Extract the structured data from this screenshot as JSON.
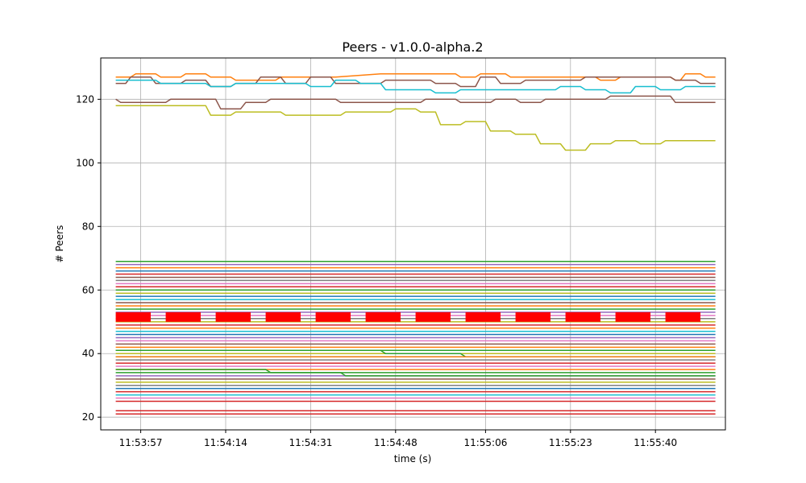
{
  "chart_data": {
    "type": "line",
    "title": "Peers  -  v1.0.0-alpha.2",
    "xlabel": "time (s)",
    "ylabel": "# Peers",
    "xlim": [
      "11:53:49",
      "11:55:54"
    ],
    "ylim": [
      16,
      133
    ],
    "grid": true,
    "legend": "none",
    "x_ticks": [
      "11:53:57",
      "11:54:14",
      "11:54:31",
      "11:54:48",
      "11:55:06",
      "11:55:23",
      "11:55:40"
    ],
    "y_ticks": [
      20,
      40,
      60,
      80,
      100,
      120
    ],
    "time_range": [
      "11:53:52",
      "11:55:52"
    ],
    "colors": [
      "#1f77b4",
      "#ff7f0e",
      "#2ca02c",
      "#d62728",
      "#9467bd",
      "#8c564b",
      "#e377c2",
      "#7f7f7f",
      "#bcbd22",
      "#17becf"
    ],
    "series": [
      {
        "color": "#ff7f0e",
        "points": [
          [
            "11:53:52",
            127
          ],
          [
            "11:53:55",
            127
          ],
          [
            "11:53:56",
            128
          ],
          [
            "11:54:00",
            128
          ],
          [
            "11:54:01",
            127
          ],
          [
            "11:54:05",
            127
          ],
          [
            "11:54:06",
            128
          ],
          [
            "11:54:10",
            128
          ],
          [
            "11:54:11",
            127
          ],
          [
            "11:54:15",
            127
          ],
          [
            "11:54:16",
            126
          ],
          [
            "11:54:24",
            126
          ],
          [
            "11:54:25",
            127
          ],
          [
            "11:54:35",
            127
          ],
          [
            "11:54:36",
            127
          ],
          [
            "11:54:45",
            128
          ],
          [
            "11:55:00",
            128
          ],
          [
            "11:55:01",
            127
          ],
          [
            "11:55:04",
            127
          ],
          [
            "11:55:05",
            128
          ],
          [
            "11:55:10",
            128
          ],
          [
            "11:55:11",
            127
          ],
          [
            "11:55:28",
            127
          ],
          [
            "11:55:29",
            126
          ],
          [
            "11:55:32",
            126
          ],
          [
            "11:55:33",
            127
          ],
          [
            "11:55:43",
            127
          ],
          [
            "11:55:44",
            126
          ],
          [
            "11:55:45",
            126
          ],
          [
            "11:55:46",
            128
          ],
          [
            "11:55:49",
            128
          ],
          [
            "11:55:50",
            127
          ],
          [
            "11:55:52",
            127
          ]
        ]
      },
      {
        "color": "#8c564b",
        "points": [
          [
            "11:53:52",
            125
          ],
          [
            "11:53:54",
            125
          ],
          [
            "11:53:55",
            127
          ],
          [
            "11:53:59",
            127
          ],
          [
            "11:54:00",
            125
          ],
          [
            "11:54:05",
            125
          ],
          [
            "11:54:06",
            126
          ],
          [
            "11:54:10",
            126
          ],
          [
            "11:54:11",
            124
          ],
          [
            "11:54:15",
            124
          ],
          [
            "11:54:16",
            125
          ],
          [
            "11:54:20",
            125
          ],
          [
            "11:54:21",
            127
          ],
          [
            "11:54:25",
            127
          ],
          [
            "11:54:26",
            125
          ],
          [
            "11:54:30",
            125
          ],
          [
            "11:54:31",
            127
          ],
          [
            "11:54:35",
            127
          ],
          [
            "11:54:36",
            125
          ],
          [
            "11:54:45",
            125
          ],
          [
            "11:54:46",
            126
          ],
          [
            "11:54:55",
            126
          ],
          [
            "11:54:56",
            125
          ],
          [
            "11:55:00",
            125
          ],
          [
            "11:55:01",
            124
          ],
          [
            "11:55:04",
            124
          ],
          [
            "11:55:05",
            127
          ],
          [
            "11:55:08",
            127
          ],
          [
            "11:55:09",
            125
          ],
          [
            "11:55:13",
            125
          ],
          [
            "11:55:14",
            126
          ],
          [
            "11:55:25",
            126
          ],
          [
            "11:55:26",
            127
          ],
          [
            "11:55:43",
            127
          ],
          [
            "11:55:44",
            126
          ],
          [
            "11:55:48",
            126
          ],
          [
            "11:55:49",
            125
          ],
          [
            "11:55:52",
            125
          ]
        ]
      },
      {
        "color": "#17becf",
        "points": [
          [
            "11:53:52",
            126
          ],
          [
            "11:54:00",
            126
          ],
          [
            "11:54:01",
            125
          ],
          [
            "11:54:05",
            125
          ],
          [
            "11:54:06",
            125
          ],
          [
            "11:54:10",
            125
          ],
          [
            "11:54:11",
            124
          ],
          [
            "11:54:15",
            124
          ],
          [
            "11:54:16",
            125
          ],
          [
            "11:54:30",
            125
          ],
          [
            "11:54:31",
            124
          ],
          [
            "11:54:35",
            124
          ],
          [
            "11:54:36",
            126
          ],
          [
            "11:54:40",
            126
          ],
          [
            "11:54:41",
            125
          ],
          [
            "11:54:45",
            125
          ],
          [
            "11:54:46",
            123
          ],
          [
            "11:54:55",
            123
          ],
          [
            "11:54:56",
            122
          ],
          [
            "11:55:00",
            122
          ],
          [
            "11:55:01",
            123
          ],
          [
            "11:55:20",
            123
          ],
          [
            "11:55:21",
            124
          ],
          [
            "11:55:25",
            124
          ],
          [
            "11:55:26",
            123
          ],
          [
            "11:55:30",
            123
          ],
          [
            "11:55:31",
            122
          ],
          [
            "11:55:35",
            122
          ],
          [
            "11:55:36",
            124
          ],
          [
            "11:55:40",
            124
          ],
          [
            "11:55:41",
            123
          ],
          [
            "11:55:45",
            123
          ],
          [
            "11:55:46",
            124
          ],
          [
            "11:55:52",
            124
          ]
        ]
      },
      {
        "color": "#8c564b",
        "points": [
          [
            "11:53:52",
            120
          ],
          [
            "11:53:53",
            119
          ],
          [
            "11:54:02",
            119
          ],
          [
            "11:54:03",
            120
          ],
          [
            "11:54:12",
            120
          ],
          [
            "11:54:13",
            117
          ],
          [
            "11:54:17",
            117
          ],
          [
            "11:54:18",
            119
          ],
          [
            "11:54:22",
            119
          ],
          [
            "11:54:23",
            120
          ],
          [
            "11:54:36",
            120
          ],
          [
            "11:54:37",
            119
          ],
          [
            "11:54:53",
            119
          ],
          [
            "11:54:54",
            120
          ],
          [
            "11:55:00",
            120
          ],
          [
            "11:55:01",
            119
          ],
          [
            "11:55:07",
            119
          ],
          [
            "11:55:08",
            120
          ],
          [
            "11:55:12",
            120
          ],
          [
            "11:55:13",
            119
          ],
          [
            "11:55:17",
            119
          ],
          [
            "11:55:18",
            120
          ],
          [
            "11:55:30",
            120
          ],
          [
            "11:55:31",
            121
          ],
          [
            "11:55:43",
            121
          ],
          [
            "11:55:44",
            119
          ],
          [
            "11:55:52",
            119
          ]
        ]
      },
      {
        "color": "#bcbd22",
        "points": [
          [
            "11:53:52",
            118
          ],
          [
            "11:54:10",
            118
          ],
          [
            "11:54:11",
            115
          ],
          [
            "11:54:15",
            115
          ],
          [
            "11:54:16",
            116
          ],
          [
            "11:54:25",
            116
          ],
          [
            "11:54:26",
            115
          ],
          [
            "11:54:37",
            115
          ],
          [
            "11:54:38",
            116
          ],
          [
            "11:54:47",
            116
          ],
          [
            "11:54:48",
            117
          ],
          [
            "11:54:52",
            117
          ],
          [
            "11:54:53",
            116
          ],
          [
            "11:54:56",
            116
          ],
          [
            "11:54:57",
            112
          ],
          [
            "11:55:01",
            112
          ],
          [
            "11:55:02",
            113
          ],
          [
            "11:55:06",
            113
          ],
          [
            "11:55:07",
            110
          ],
          [
            "11:55:11",
            110
          ],
          [
            "11:55:12",
            109
          ],
          [
            "11:55:16",
            109
          ],
          [
            "11:55:17",
            106
          ],
          [
            "11:55:21",
            106
          ],
          [
            "11:55:22",
            104
          ],
          [
            "11:55:26",
            104
          ],
          [
            "11:55:27",
            106
          ],
          [
            "11:55:31",
            106
          ],
          [
            "11:55:32",
            107
          ],
          [
            "11:55:36",
            107
          ],
          [
            "11:55:37",
            106
          ],
          [
            "11:55:41",
            106
          ],
          [
            "11:55:42",
            107
          ],
          [
            "11:55:52",
            107
          ]
        ]
      }
    ],
    "flat_series": [
      {
        "value": 69,
        "color": "#2ca02c"
      },
      {
        "value": 68,
        "color": "#9467bd"
      },
      {
        "value": 67,
        "color": "#ff7f0e"
      },
      {
        "value": 66,
        "color": "#1f77b4"
      },
      {
        "value": 65,
        "color": "#d62728"
      },
      {
        "value": 64,
        "color": "#8c564b"
      },
      {
        "value": 63,
        "color": "#7f7f7f"
      },
      {
        "value": 62,
        "color": "#e377c2"
      },
      {
        "value": 61,
        "color": "#d62728"
      },
      {
        "value": 60,
        "color": "#2ca02c"
      },
      {
        "value": 59,
        "color": "#bcbd22"
      },
      {
        "value": 58,
        "color": "#1f77b4"
      },
      {
        "value": 57,
        "color": "#17becf"
      },
      {
        "value": 56,
        "color": "#8c564b"
      },
      {
        "value": 55,
        "color": "#ff7f0e"
      },
      {
        "value": 54,
        "color": "#2ca02c"
      },
      {
        "value": 53,
        "color": "#9467bd"
      },
      {
        "value": 52,
        "color": "#e377c2"
      },
      {
        "value": 51,
        "color": "#7f7f7f"
      },
      {
        "value": 50,
        "color": "#bcbd22"
      },
      {
        "value": 49,
        "color": "#d62728"
      },
      {
        "value": 48,
        "color": "#ff7f0e"
      },
      {
        "value": 47,
        "color": "#17becf"
      },
      {
        "value": 46,
        "color": "#1f77b4"
      },
      {
        "value": 45,
        "color": "#9467bd"
      },
      {
        "value": 44,
        "color": "#e377c2"
      },
      {
        "value": 43,
        "color": "#8c564b"
      },
      {
        "value": 42,
        "color": "#ff7f0e"
      },
      {
        "value": 41,
        "color": "#2ca02c"
      },
      {
        "value": 40,
        "color": "#bcbd22"
      },
      {
        "value": 39,
        "color": "#17becf"
      },
      {
        "value": 38,
        "color": "#7f7f7f"
      },
      {
        "value": 37,
        "color": "#d62728"
      },
      {
        "value": 36,
        "color": "#e377c2"
      },
      {
        "value": 35,
        "color": "#ff7f0e"
      },
      {
        "value": 34,
        "color": "#2ca02c"
      },
      {
        "value": 33,
        "color": "#9467bd"
      },
      {
        "value": 32,
        "color": "#8c564b"
      },
      {
        "value": 31,
        "color": "#bcbd22"
      },
      {
        "value": 30,
        "color": "#7f7f7f"
      },
      {
        "value": 29,
        "color": "#1f77b4"
      },
      {
        "value": 28,
        "color": "#d62728"
      },
      {
        "value": 27,
        "color": "#17becf"
      },
      {
        "value": 26,
        "color": "#e377c2"
      },
      {
        "value": 25,
        "color": "#d62728"
      },
      {
        "value": 22,
        "color": "#d62728"
      },
      {
        "value": 21,
        "color": "#d62728"
      }
    ],
    "step_series": [
      {
        "color": "#2ca02c",
        "points": [
          [
            "11:53:52",
            35
          ],
          [
            "11:54:22",
            35
          ],
          [
            "11:54:23",
            34
          ],
          [
            "11:54:37",
            34
          ],
          [
            "11:54:38",
            33
          ],
          [
            "11:55:52",
            33
          ]
        ]
      },
      {
        "color": "#2ca02c",
        "points": [
          [
            "11:53:52",
            41
          ],
          [
            "11:54:45",
            41
          ],
          [
            "11:54:46",
            40
          ],
          [
            "11:55:01",
            40
          ],
          [
            "11:55:02",
            39
          ],
          [
            "11:55:52",
            39
          ]
        ]
      },
      {
        "color": "#ff7f0e",
        "points": [
          [
            "11:53:52",
            39
          ],
          [
            "11:55:10",
            39
          ],
          [
            "11:55:11",
            39
          ],
          [
            "11:55:52",
            39
          ]
        ]
      }
    ],
    "highlight": {
      "color": "#ff0000",
      "value_low": 50,
      "value_high": 53,
      "blocks": [
        [
          "11:53:52",
          "11:53:59"
        ],
        [
          "11:54:02",
          "11:54:09"
        ],
        [
          "11:54:12",
          "11:54:19"
        ],
        [
          "11:54:22",
          "11:54:29"
        ],
        [
          "11:54:32",
          "11:54:39"
        ],
        [
          "11:54:42",
          "11:54:49"
        ],
        [
          "11:54:52",
          "11:54:59"
        ],
        [
          "11:55:02",
          "11:55:09"
        ],
        [
          "11:55:12",
          "11:55:19"
        ],
        [
          "11:55:22",
          "11:55:29"
        ],
        [
          "11:55:32",
          "11:55:39"
        ],
        [
          "11:55:42",
          "11:55:49"
        ]
      ]
    }
  }
}
